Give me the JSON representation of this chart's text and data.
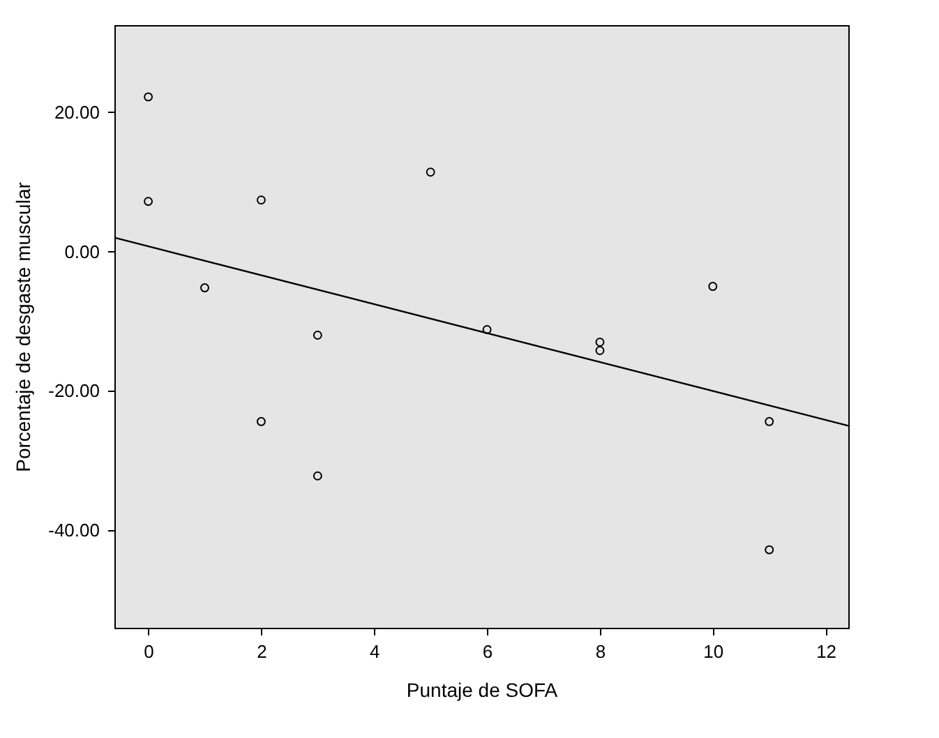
{
  "chart_data": {
    "type": "scatter",
    "xlabel": "Puntaje de SOFA",
    "ylabel": "Porcentaje de desgaste muscular",
    "xlim": [
      -0.6,
      12.4
    ],
    "xticks": [
      0,
      2,
      4,
      6,
      8,
      10,
      12
    ],
    "ylim": [
      -54,
      32.5
    ],
    "yticks": [
      {
        "value": -40,
        "label": "-40.00"
      },
      {
        "value": -20,
        "label": "-20.00"
      },
      {
        "value": 0,
        "label": "0.00"
      },
      {
        "value": 20,
        "label": "20.00"
      }
    ],
    "grid": false,
    "series": [
      {
        "color": "#000000",
        "marker": "circle",
        "x": [
          0,
          0,
          1,
          2,
          2,
          3,
          3,
          5,
          6,
          8,
          8,
          10,
          11,
          11
        ],
        "values": [
          22.2,
          7.2,
          -5.2,
          7.4,
          -24.4,
          -12,
          -32.2,
          11.4,
          -11.2,
          -13,
          -14.2,
          -5,
          -24.4,
          -42.8
        ]
      },
      {
        "type": "line",
        "color": "#000000",
        "x": [
          -0.6,
          12.4
        ],
        "values": [
          2,
          -25
        ]
      }
    ]
  }
}
